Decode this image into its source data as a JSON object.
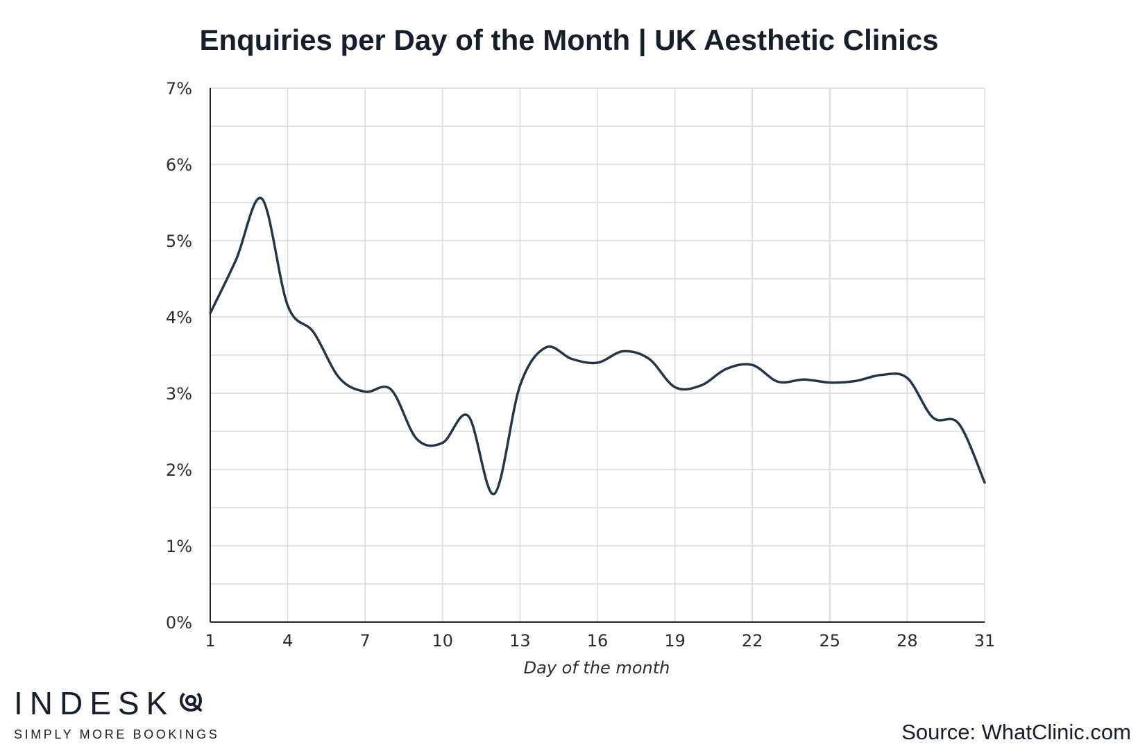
{
  "title": "Enquiries per Day of the Month | UK Aesthetic Clinics",
  "brand": {
    "name": "INDESK",
    "tagline": "SIMPLY MORE BOOKINGS",
    "icon": "speech-bubble-icon"
  },
  "source": "Source: WhatClinic.com",
  "colors": {
    "line": "#233548",
    "grid": "#d9d9d9",
    "axis": "#222222",
    "text": "#141f2b"
  },
  "chart_data": {
    "type": "line",
    "title": "Enquiries per Day of the Month | UK Aesthetic Clinics",
    "xlabel": "Day of the month",
    "ylabel": "",
    "xlim": [
      1,
      31
    ],
    "ylim": [
      0,
      7
    ],
    "x_ticks": [
      1,
      4,
      7,
      10,
      13,
      16,
      19,
      22,
      25,
      28,
      31
    ],
    "y_ticks": [
      0,
      1,
      2,
      3,
      4,
      5,
      6,
      7
    ],
    "y_tick_labels": [
      "0%",
      "1%",
      "2%",
      "3%",
      "4%",
      "5%",
      "6%",
      "7%"
    ],
    "grid": true,
    "smooth": true,
    "series": [
      {
        "x": [
          1,
          2,
          3,
          4,
          5,
          6,
          7,
          8,
          9,
          10,
          11,
          12,
          13,
          14,
          15,
          16,
          17,
          18,
          19,
          20,
          21,
          22,
          23,
          24,
          25,
          26,
          27,
          28,
          29,
          30,
          31
        ],
        "values": [
          4.05,
          4.75,
          5.55,
          4.15,
          3.8,
          3.2,
          3.02,
          3.05,
          2.4,
          2.35,
          2.7,
          1.68,
          3.1,
          3.6,
          3.45,
          3.4,
          3.55,
          3.45,
          3.08,
          3.1,
          3.32,
          3.37,
          3.15,
          3.18,
          3.14,
          3.16,
          3.24,
          3.2,
          2.68,
          2.6,
          1.83
        ]
      }
    ]
  }
}
